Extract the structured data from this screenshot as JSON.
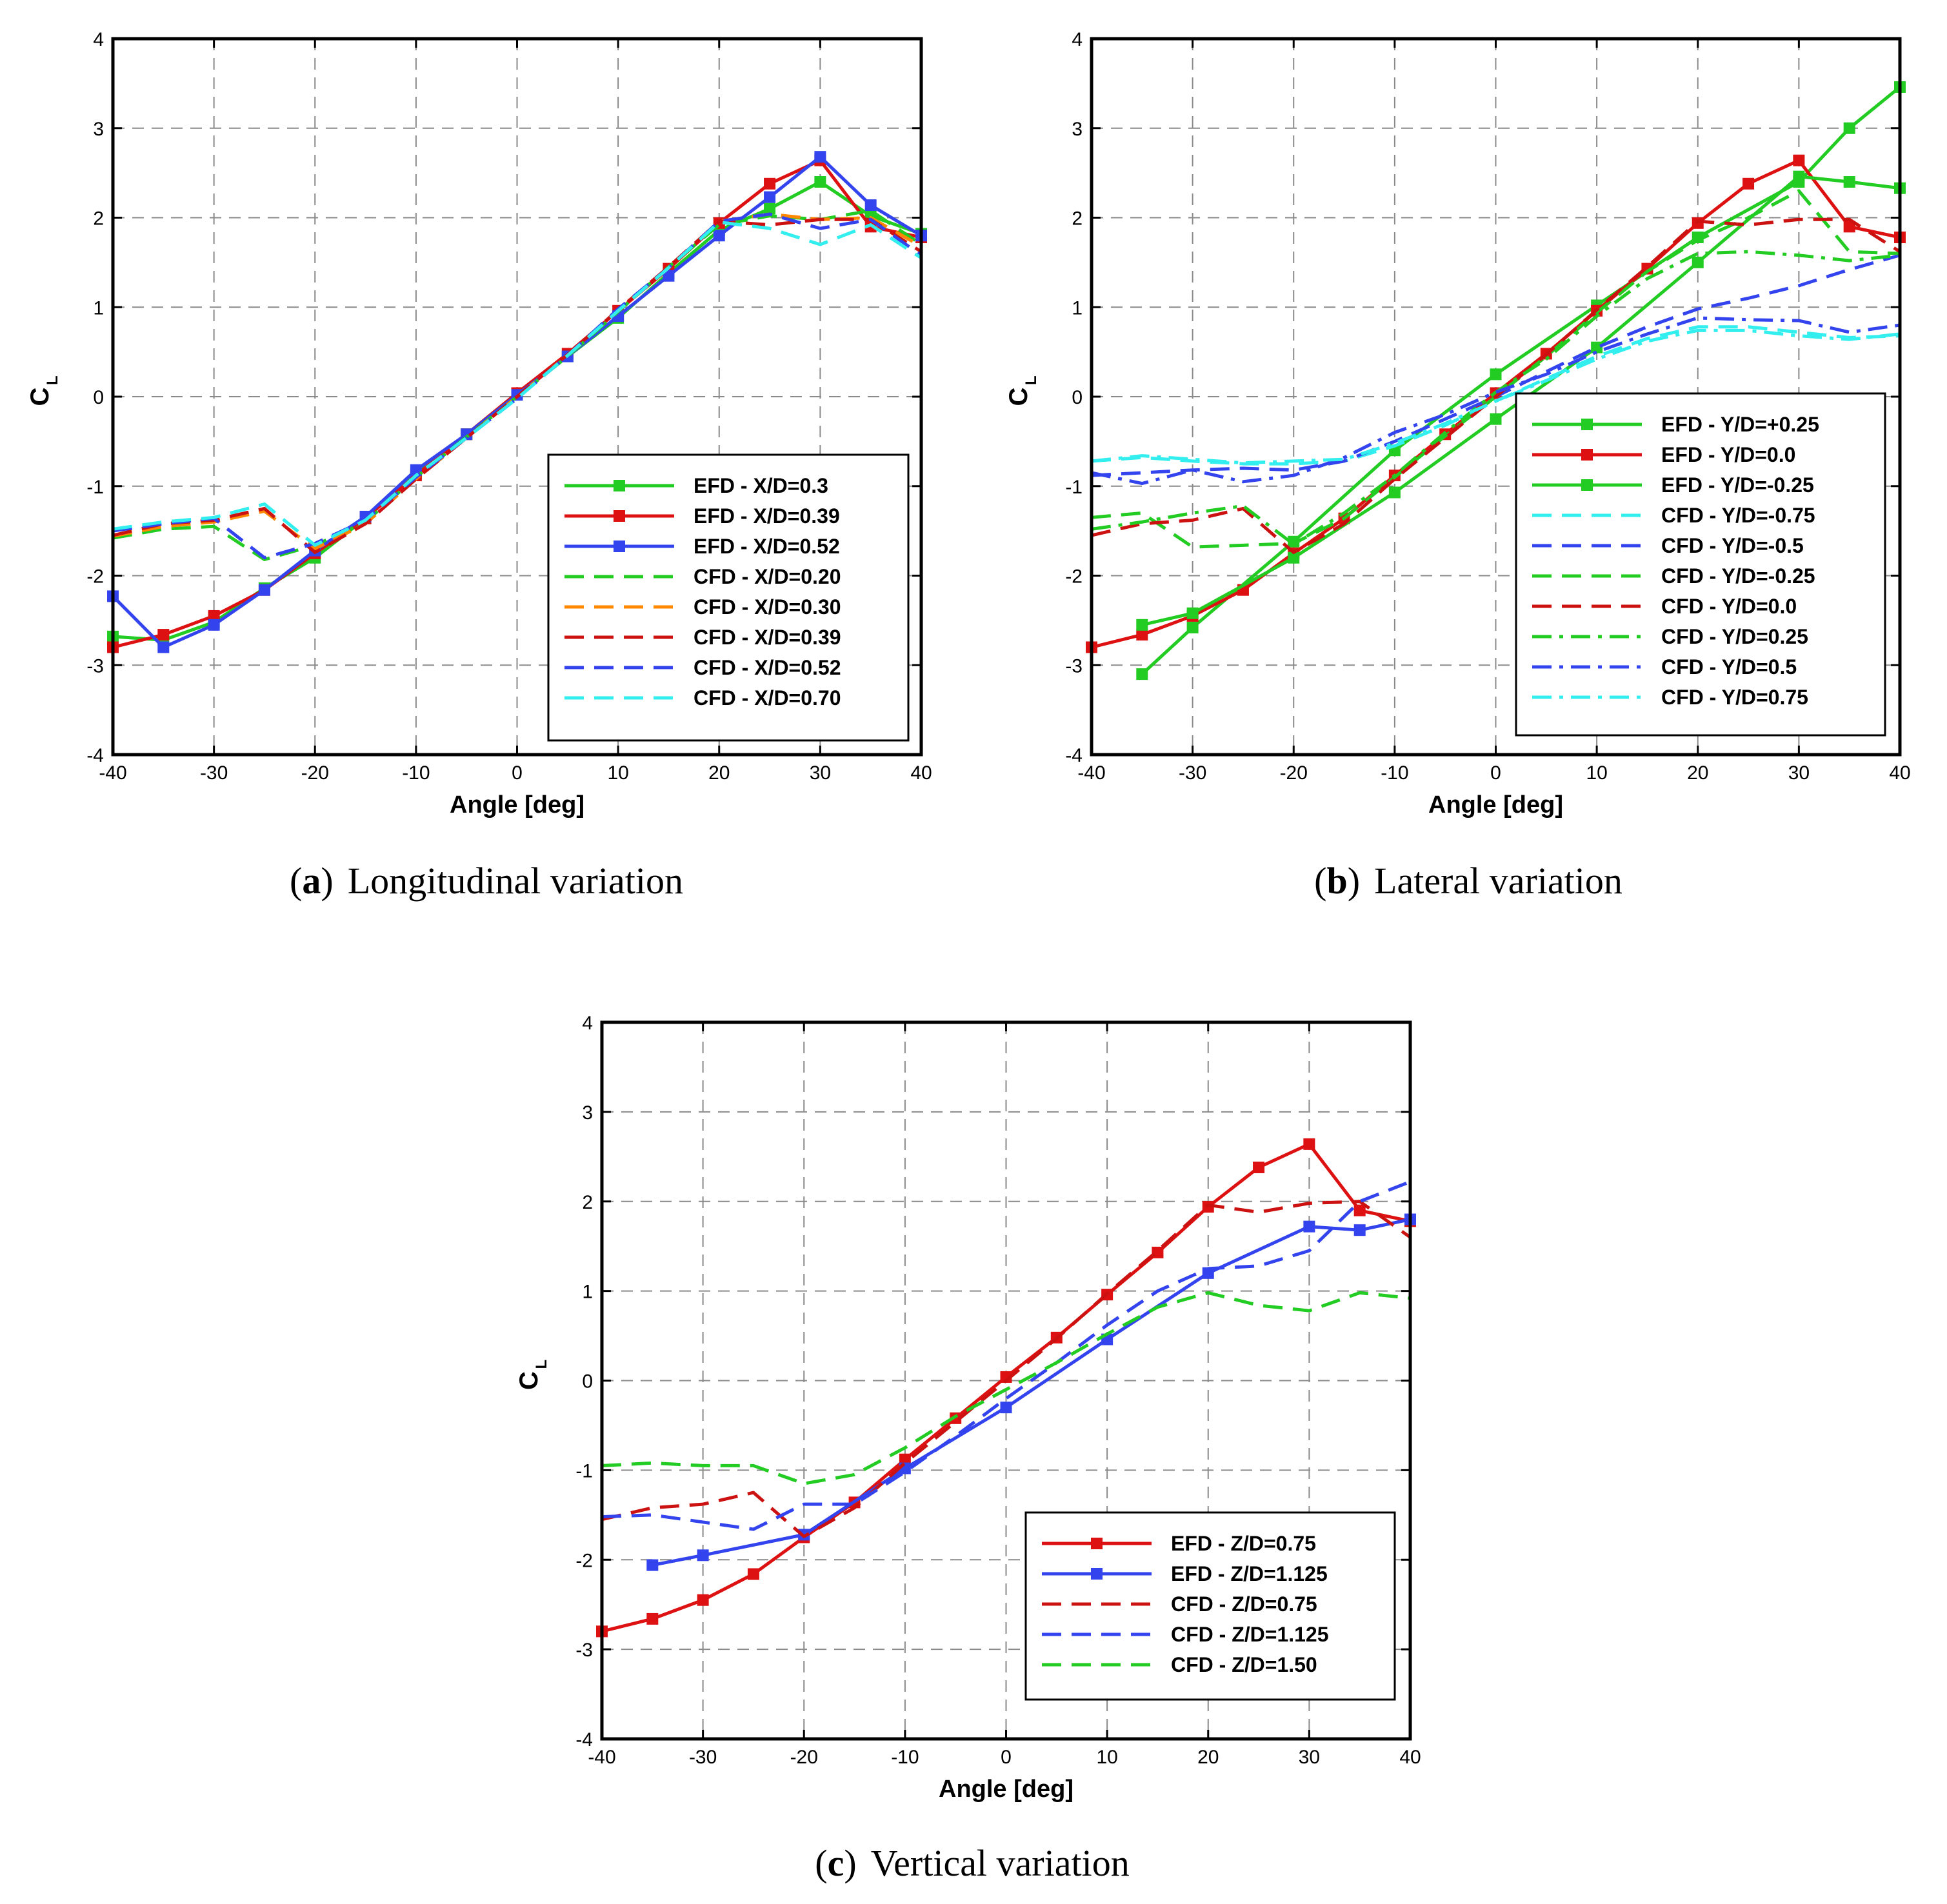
{
  "chart_data": [
    {
      "id": "a",
      "type": "line",
      "caption_letter": "a",
      "caption": "Longitudinal variation",
      "xlabel": "Angle [deg]",
      "ylabel": "C",
      "ylabel_sub": "L",
      "xlim": [
        -40,
        40
      ],
      "ylim": [
        -4,
        4
      ],
      "xticks": [
        -40,
        -30,
        -20,
        -10,
        0,
        10,
        20,
        30,
        40
      ],
      "yticks": [
        -4,
        -3,
        -2,
        -1,
        0,
        1,
        2,
        3,
        4
      ],
      "grid": true,
      "legend_position": "bottom-right",
      "series": [
        {
          "name": "EFD - X/D=0.3",
          "color": "#22cc22",
          "style": "solid",
          "marker": true,
          "x": [
            -40,
            -35,
            -30,
            -25,
            -20,
            -15,
            -10,
            -5,
            0,
            5,
            10,
            15,
            20,
            25,
            30,
            35,
            40
          ],
          "y": [
            -2.68,
            -2.72,
            -2.52,
            -2.14,
            -1.8,
            -1.36,
            -0.86,
            -0.42,
            0.03,
            0.45,
            0.88,
            1.38,
            1.86,
            2.1,
            2.4,
            2.02,
            1.82
          ]
        },
        {
          "name": "EFD - X/D=0.39",
          "color": "#dd1111",
          "style": "solid",
          "marker": true,
          "x": [
            -40,
            -35,
            -30,
            -25,
            -20,
            -15,
            -10,
            -5,
            0,
            5,
            10,
            15,
            20,
            25,
            30,
            35,
            40
          ],
          "y": [
            -2.8,
            -2.66,
            -2.45,
            -2.16,
            -1.75,
            -1.36,
            -0.88,
            -0.42,
            0.04,
            0.48,
            0.96,
            1.43,
            1.94,
            2.38,
            2.64,
            1.9,
            1.78
          ]
        },
        {
          "name": "EFD - X/D=0.52",
          "color": "#3344ee",
          "style": "solid",
          "marker": true,
          "x": [
            -40,
            -35,
            -30,
            -25,
            -20,
            -15,
            -10,
            -5,
            0,
            5,
            10,
            15,
            20,
            25,
            30,
            35,
            40
          ],
          "y": [
            -2.23,
            -2.8,
            -2.55,
            -2.16,
            -1.72,
            -1.34,
            -0.82,
            -0.42,
            0.02,
            0.45,
            0.9,
            1.35,
            1.8,
            2.23,
            2.68,
            2.14,
            1.8
          ]
        },
        {
          "name": "CFD - X/D=0.20",
          "color": "#22cc22",
          "style": "dashed",
          "marker": false,
          "x": [
            -40,
            -35,
            -30,
            -25,
            -20,
            -15,
            -10,
            -5,
            0,
            5,
            10,
            15,
            20,
            25,
            30,
            35,
            40
          ],
          "y": [
            -1.58,
            -1.48,
            -1.45,
            -1.82,
            -1.66,
            -1.4,
            -0.9,
            -0.45,
            0.0,
            0.45,
            0.95,
            1.45,
            1.92,
            2.02,
            1.98,
            2.08,
            1.7
          ]
        },
        {
          "name": "CFD - X/D=0.30",
          "color": "#ff8800",
          "style": "dashed",
          "marker": false,
          "x": [
            -40,
            -35,
            -30,
            -25,
            -20,
            -15,
            -10,
            -5,
            0,
            5,
            10,
            15,
            20,
            25,
            30,
            35,
            40
          ],
          "y": [
            -1.56,
            -1.45,
            -1.4,
            -1.28,
            -1.7,
            -1.42,
            -0.92,
            -0.46,
            0.0,
            0.46,
            0.96,
            1.44,
            1.96,
            2.04,
            1.98,
            2.0,
            1.68
          ]
        },
        {
          "name": "CFD - X/D=0.39",
          "color": "#cc1111",
          "style": "dashed",
          "marker": false,
          "x": [
            -40,
            -35,
            -30,
            -25,
            -20,
            -15,
            -10,
            -5,
            0,
            5,
            10,
            15,
            20,
            25,
            30,
            35,
            40
          ],
          "y": [
            -1.55,
            -1.42,
            -1.38,
            -1.25,
            -1.74,
            -1.42,
            -0.92,
            -0.46,
            0.0,
            0.47,
            0.97,
            1.45,
            1.96,
            1.92,
            1.98,
            1.98,
            1.62
          ]
        },
        {
          "name": "CFD - X/D=0.52",
          "color": "#3344ee",
          "style": "dashed",
          "marker": false,
          "x": [
            -40,
            -35,
            -30,
            -25,
            -20,
            -15,
            -10,
            -5,
            0,
            5,
            10,
            15,
            20,
            25,
            30,
            35,
            40
          ],
          "y": [
            -1.5,
            -1.42,
            -1.36,
            -1.8,
            -1.64,
            -1.38,
            -0.9,
            -0.46,
            -0.02,
            0.46,
            0.98,
            1.44,
            1.96,
            2.04,
            1.88,
            1.98,
            1.58
          ]
        },
        {
          "name": "CFD - X/D=0.70",
          "color": "#33eeee",
          "style": "dashed",
          "marker": false,
          "x": [
            -40,
            -35,
            -30,
            -25,
            -20,
            -15,
            -10,
            -5,
            0,
            5,
            10,
            15,
            20,
            25,
            30,
            35,
            40
          ],
          "y": [
            -1.48,
            -1.4,
            -1.35,
            -1.2,
            -1.66,
            -1.38,
            -0.88,
            -0.46,
            -0.02,
            0.46,
            0.96,
            1.44,
            1.95,
            1.88,
            1.7,
            1.92,
            1.55
          ]
        }
      ]
    },
    {
      "id": "b",
      "type": "line",
      "caption_letter": "b",
      "caption": "Lateral variation",
      "xlabel": "Angle [deg]",
      "ylabel": "C",
      "ylabel_sub": "L",
      "xlim": [
        -40,
        40
      ],
      "ylim": [
        -4,
        4
      ],
      "xticks": [
        -40,
        -30,
        -20,
        -10,
        0,
        10,
        20,
        30,
        40
      ],
      "yticks": [
        -4,
        -3,
        -2,
        -1,
        0,
        1,
        2,
        3,
        4
      ],
      "grid": true,
      "legend_position": "bottom-right",
      "series": [
        {
          "name": "EFD - Y/D=+0.25",
          "color": "#22cc22",
          "style": "solid",
          "marker": true,
          "x": [
            -35,
            -30,
            -20,
            -10,
            0,
            10,
            20,
            30,
            35,
            40
          ],
          "y": [
            -3.1,
            -2.58,
            -1.62,
            -0.6,
            0.25,
            1.02,
            1.78,
            2.4,
            3.0,
            3.46
          ]
        },
        {
          "name": "EFD - Y/D=0.0",
          "color": "#dd1111",
          "style": "solid",
          "marker": true,
          "x": [
            -40,
            -35,
            -30,
            -25,
            -20,
            -15,
            -10,
            -5,
            0,
            5,
            10,
            15,
            20,
            25,
            30,
            35,
            40
          ],
          "y": [
            -2.8,
            -2.66,
            -2.45,
            -2.16,
            -1.75,
            -1.36,
            -0.88,
            -0.42,
            0.04,
            0.48,
            0.96,
            1.43,
            1.94,
            2.38,
            2.64,
            1.9,
            1.78
          ]
        },
        {
          "name": "EFD - Y/D=-0.25",
          "color": "#22cc22",
          "style": "solid",
          "marker": true,
          "x": [
            -35,
            -30,
            -20,
            -10,
            0,
            10,
            20,
            30,
            35,
            40
          ],
          "y": [
            -2.55,
            -2.42,
            -1.8,
            -1.07,
            -0.25,
            0.55,
            1.5,
            2.46,
            2.4,
            2.33
          ]
        },
        {
          "name": "CFD - Y/D=-0.75",
          "color": "#33eeee",
          "style": "dashed",
          "marker": false,
          "x": [
            -40,
            -35,
            -30,
            -25,
            -20,
            -15,
            -10,
            -5,
            0,
            5,
            10,
            15,
            20,
            25,
            30,
            35,
            40
          ],
          "y": [
            -0.72,
            -0.68,
            -0.72,
            -0.75,
            -0.75,
            -0.72,
            -0.55,
            -0.32,
            -0.05,
            0.2,
            0.45,
            0.65,
            0.78,
            0.78,
            0.72,
            0.66,
            0.68
          ]
        },
        {
          "name": "CFD - Y/D=-0.5",
          "color": "#3344ee",
          "style": "dashed",
          "marker": false,
          "x": [
            -40,
            -35,
            -30,
            -25,
            -20,
            -15,
            -10,
            -5,
            0,
            5,
            10,
            15,
            20,
            25,
            30,
            35,
            40
          ],
          "y": [
            -0.88,
            -0.85,
            -0.82,
            -0.8,
            -0.82,
            -0.72,
            -0.5,
            -0.25,
            0.0,
            0.28,
            0.55,
            0.78,
            0.98,
            1.1,
            1.24,
            1.42,
            1.58
          ]
        },
        {
          "name": "CFD - Y/D=-0.25",
          "color": "#22cc22",
          "style": "dashed",
          "marker": false,
          "x": [
            -40,
            -35,
            -30,
            -25,
            -20,
            -15,
            -10,
            -5,
            0,
            5,
            10,
            15,
            20,
            25,
            30,
            35,
            40
          ],
          "y": [
            -1.35,
            -1.3,
            -1.68,
            -1.66,
            -1.64,
            -1.36,
            -0.9,
            -0.44,
            0.0,
            0.45,
            0.94,
            1.4,
            1.75,
            2.0,
            2.3,
            1.62,
            1.6
          ]
        },
        {
          "name": "CFD - Y/D=0.0",
          "color": "#cc1111",
          "style": "dashed",
          "marker": false,
          "x": [
            -40,
            -35,
            -30,
            -25,
            -20,
            -15,
            -10,
            -5,
            0,
            5,
            10,
            15,
            20,
            25,
            30,
            35,
            40
          ],
          "y": [
            -1.55,
            -1.42,
            -1.38,
            -1.25,
            -1.74,
            -1.42,
            -0.92,
            -0.46,
            0.0,
            0.47,
            0.97,
            1.45,
            1.96,
            1.92,
            1.98,
            1.98,
            1.62
          ]
        },
        {
          "name": "CFD - Y/D=0.25",
          "color": "#22cc22",
          "style": "dashdot",
          "marker": false,
          "x": [
            -40,
            -35,
            -30,
            -25,
            -20,
            -15,
            -10,
            -5,
            0,
            5,
            10,
            15,
            20,
            25,
            30,
            35,
            40
          ],
          "y": [
            -1.48,
            -1.4,
            -1.3,
            -1.22,
            -1.65,
            -1.3,
            -0.88,
            -0.4,
            0.05,
            0.42,
            0.9,
            1.32,
            1.6,
            1.62,
            1.58,
            1.52,
            1.58
          ]
        },
        {
          "name": "CFD - Y/D=0.5",
          "color": "#3344ee",
          "style": "dashdot",
          "marker": false,
          "x": [
            -40,
            -35,
            -30,
            -25,
            -20,
            -15,
            -10,
            -5,
            0,
            5,
            10,
            15,
            20,
            25,
            30,
            35,
            40
          ],
          "y": [
            -0.85,
            -0.97,
            -0.82,
            -0.95,
            -0.88,
            -0.68,
            -0.4,
            -0.2,
            0.05,
            0.25,
            0.5,
            0.7,
            0.88,
            0.86,
            0.85,
            0.72,
            0.8
          ]
        },
        {
          "name": "CFD - Y/D=0.75",
          "color": "#33eeee",
          "style": "dashdot",
          "marker": false,
          "x": [
            -40,
            -35,
            -30,
            -25,
            -20,
            -15,
            -10,
            -5,
            0,
            5,
            10,
            15,
            20,
            25,
            30,
            35,
            40
          ],
          "y": [
            -0.72,
            -0.66,
            -0.7,
            -0.74,
            -0.72,
            -0.7,
            -0.52,
            -0.3,
            -0.05,
            0.18,
            0.42,
            0.62,
            0.74,
            0.74,
            0.68,
            0.64,
            0.7
          ]
        }
      ]
    },
    {
      "id": "c",
      "type": "line",
      "caption_letter": "c",
      "caption": "Vertical variation",
      "xlabel": "Angle [deg]",
      "ylabel": "C",
      "ylabel_sub": "L",
      "xlim": [
        -40,
        40
      ],
      "ylim": [
        -4,
        4
      ],
      "xticks": [
        -40,
        -30,
        -20,
        -10,
        0,
        10,
        20,
        30,
        40
      ],
      "yticks": [
        -4,
        -3,
        -2,
        -1,
        0,
        1,
        2,
        3,
        4
      ],
      "grid": true,
      "legend_position": "bottom-right",
      "series": [
        {
          "name": "EFD - Z/D=0.75",
          "color": "#dd1111",
          "style": "solid",
          "marker": true,
          "x": [
            -40,
            -35,
            -30,
            -25,
            -20,
            -15,
            -10,
            -5,
            0,
            5,
            10,
            15,
            20,
            25,
            30,
            35,
            40
          ],
          "y": [
            -2.8,
            -2.66,
            -2.45,
            -2.16,
            -1.75,
            -1.36,
            -0.88,
            -0.42,
            0.04,
            0.48,
            0.96,
            1.43,
            1.94,
            2.38,
            2.64,
            1.9,
            1.78
          ]
        },
        {
          "name": "EFD - Z/D=1.125",
          "color": "#3344ee",
          "style": "solid",
          "marker": true,
          "x": [
            -35,
            -30,
            -20,
            -10,
            0,
            10,
            20,
            30,
            35,
            40
          ],
          "y": [
            -2.06,
            -1.95,
            -1.72,
            -0.98,
            -0.3,
            0.46,
            1.2,
            1.72,
            1.68,
            1.8
          ]
        },
        {
          "name": "CFD - Z/D=0.75",
          "color": "#cc1111",
          "style": "dashed",
          "marker": false,
          "x": [
            -40,
            -35,
            -30,
            -25,
            -20,
            -15,
            -10,
            -5,
            0,
            5,
            10,
            15,
            20,
            25,
            30,
            35,
            40
          ],
          "y": [
            -1.55,
            -1.42,
            -1.38,
            -1.25,
            -1.74,
            -1.42,
            -0.92,
            -0.46,
            0.0,
            0.47,
            0.97,
            1.45,
            1.96,
            1.88,
            1.98,
            2.0,
            1.6
          ]
        },
        {
          "name": "CFD - Z/D=1.125",
          "color": "#3344ee",
          "style": "dashed",
          "marker": false,
          "x": [
            -40,
            -35,
            -30,
            -25,
            -20,
            -15,
            -10,
            -5,
            0,
            5,
            10,
            15,
            20,
            25,
            30,
            35,
            40
          ],
          "y": [
            -1.52,
            -1.5,
            -1.58,
            -1.66,
            -1.38,
            -1.38,
            -1.02,
            -0.62,
            -0.2,
            0.2,
            0.62,
            1.0,
            1.25,
            1.28,
            1.45,
            2.0,
            2.22
          ]
        },
        {
          "name": "CFD - Z/D=1.50",
          "color": "#22cc22",
          "style": "dashed",
          "marker": false,
          "x": [
            -40,
            -35,
            -30,
            -25,
            -20,
            -15,
            -10,
            -5,
            0,
            5,
            10,
            15,
            20,
            25,
            30,
            35,
            40
          ],
          "y": [
            -0.95,
            -0.92,
            -0.95,
            -0.95,
            -1.15,
            -1.05,
            -0.75,
            -0.4,
            -0.1,
            0.2,
            0.52,
            0.82,
            0.98,
            0.84,
            0.78,
            0.98,
            0.92
          ]
        }
      ]
    }
  ]
}
